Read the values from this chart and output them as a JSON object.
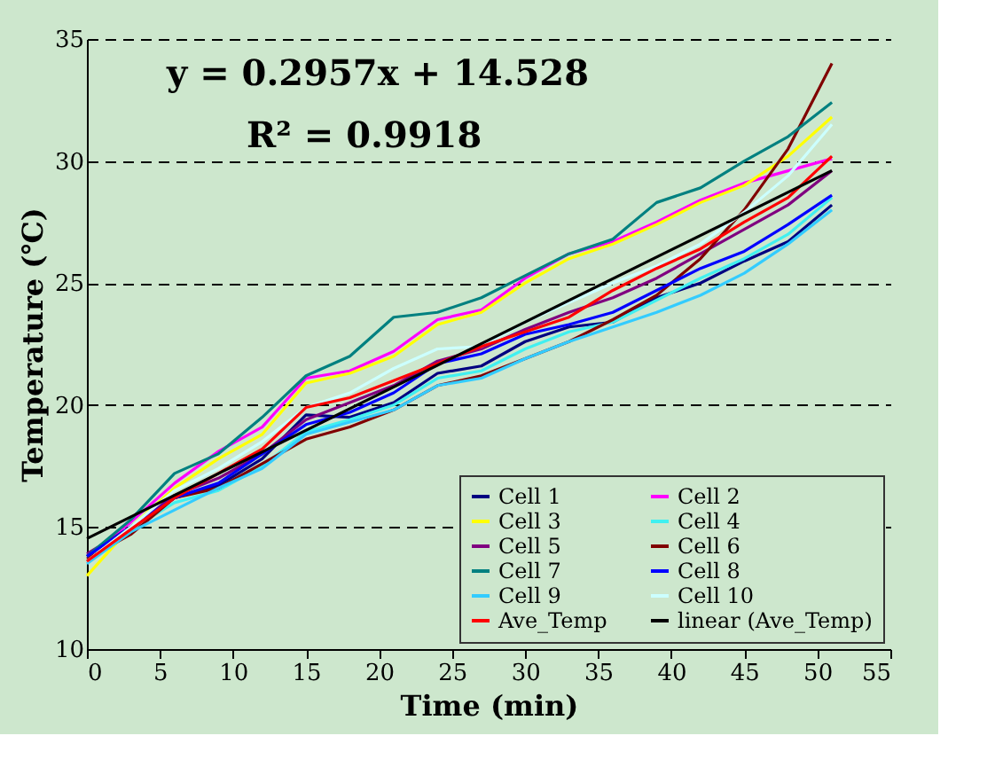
{
  "chart_data": {
    "type": "line",
    "xlabel": "Time (min)",
    "ylabel": "Temperature (℃)",
    "annotations": [
      "y = 0.2957x + 14.528",
      "R² = 0.9918"
    ],
    "x": [
      0,
      3,
      6,
      9,
      12,
      15,
      18,
      21,
      24,
      27,
      30,
      33,
      36,
      39,
      42,
      45,
      48,
      51
    ],
    "xlim": [
      0,
      55
    ],
    "xticks": [
      0,
      5,
      10,
      15,
      20,
      25,
      30,
      35,
      40,
      45,
      50,
      55
    ],
    "ylim": [
      10,
      35
    ],
    "yticks": [
      10,
      15,
      20,
      25,
      30,
      35
    ],
    "grid": "y",
    "legend": "bottom right",
    "line_style": "solid",
    "series": [
      {
        "name": "Cell 1",
        "color": "#000080",
        "values": [
          13.6,
          14.9,
          16.2,
          16.7,
          17.8,
          19.6,
          19.5,
          20.1,
          21.3,
          21.6,
          22.6,
          23.2,
          23.4,
          24.4,
          25.0,
          25.9,
          26.7,
          28.2
        ]
      },
      {
        "name": "Cell 2",
        "color": "#ff00ff",
        "values": [
          13.8,
          15.2,
          16.8,
          18.1,
          19.1,
          21.1,
          21.4,
          22.2,
          23.5,
          23.9,
          25.2,
          26.2,
          26.7,
          27.5,
          28.4,
          29.1,
          29.6,
          30.1
        ]
      },
      {
        "name": "Cell 3",
        "color": "#ffff00",
        "values": [
          13.0,
          15.0,
          16.6,
          17.8,
          18.8,
          20.9,
          21.3,
          22.0,
          23.3,
          23.8,
          25.0,
          26.0,
          26.6,
          27.4,
          28.3,
          29.0,
          30.2,
          31.8
        ]
      },
      {
        "name": "Cell 4",
        "color": "#40f0f0",
        "values": [
          13.6,
          14.9,
          16.0,
          16.5,
          17.5,
          18.9,
          19.4,
          20.0,
          21.1,
          21.4,
          22.3,
          23.0,
          23.4,
          24.3,
          25.2,
          26.0,
          27.0,
          28.5
        ]
      },
      {
        "name": "Cell 5",
        "color": "#800080",
        "values": [
          13.9,
          15.0,
          16.3,
          17.0,
          18.0,
          19.4,
          20.1,
          20.8,
          21.8,
          22.3,
          23.1,
          23.8,
          24.4,
          25.2,
          26.2,
          27.2,
          28.2,
          29.6
        ]
      },
      {
        "name": "Cell 6",
        "color": "#800000",
        "values": [
          13.7,
          14.7,
          16.2,
          16.6,
          17.6,
          18.6,
          19.1,
          19.8,
          20.8,
          21.2,
          21.9,
          22.6,
          23.5,
          24.5,
          26.0,
          28.0,
          30.5,
          34.0
        ]
      },
      {
        "name": "Cell 7",
        "color": "#008080",
        "values": [
          13.8,
          15.3,
          17.2,
          18.0,
          19.5,
          21.2,
          22.0,
          23.6,
          23.8,
          24.4,
          25.3,
          26.2,
          26.8,
          28.3,
          28.9,
          30.0,
          31.0,
          32.4
        ]
      },
      {
        "name": "Cell 8",
        "color": "#0000ff",
        "values": [
          13.8,
          15.0,
          16.2,
          16.8,
          18.0,
          19.2,
          19.7,
          20.5,
          21.7,
          22.1,
          22.9,
          23.3,
          23.8,
          24.7,
          25.6,
          26.3,
          27.4,
          28.6
        ]
      },
      {
        "name": "Cell 9",
        "color": "#33ccff",
        "values": [
          13.5,
          14.8,
          15.7,
          16.6,
          17.4,
          18.8,
          19.3,
          19.8,
          20.8,
          21.1,
          21.9,
          22.6,
          23.2,
          23.8,
          24.5,
          25.4,
          26.6,
          28.0
        ]
      },
      {
        "name": "Cell 10",
        "color": "#ccffff",
        "values": [
          13.6,
          15.0,
          16.5,
          17.4,
          18.5,
          19.9,
          20.5,
          21.5,
          22.3,
          22.4,
          23.4,
          24.2,
          25.0,
          25.7,
          26.6,
          27.9,
          29.4,
          31.5
        ]
      },
      {
        "name": "Ave_Temp",
        "color": "#ff0000",
        "values": [
          13.6,
          14.9,
          16.2,
          17.2,
          18.2,
          19.9,
          20.3,
          21.0,
          21.7,
          22.4,
          23.0,
          23.6,
          24.7,
          25.6,
          26.4,
          27.5,
          28.5,
          30.2
        ]
      },
      {
        "name": "linear (Ave_Temp)",
        "color": "#000000",
        "type": "line",
        "x": [
          0,
          51
        ],
        "values": [
          14.53,
          29.61
        ]
      }
    ]
  }
}
